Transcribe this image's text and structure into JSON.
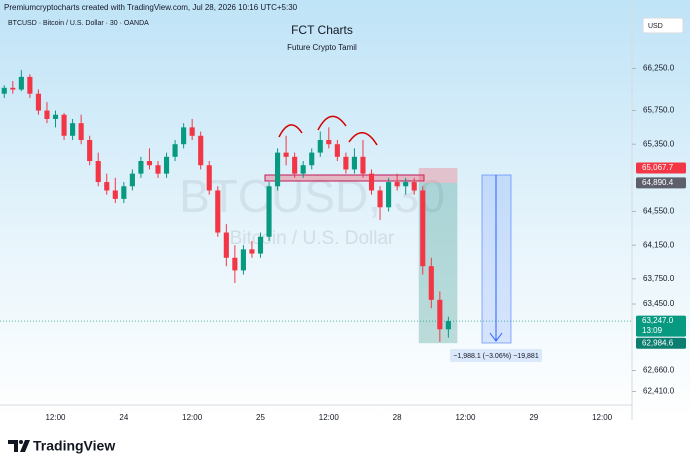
{
  "header": "Premiumcryptocharts created with TradingView.com, Jul 28, 2026 10:16 UTC+5:30",
  "footer": {
    "brand": "TradingView"
  },
  "chart_data": {
    "type": "candlestick",
    "title": "FCT Charts",
    "subtitle": "Future Crypto Tamil",
    "symbol": "BTCUSD · Bitcoin / U.S. Dollar · 30 · OANDA",
    "watermark": [
      "BTCUSD, 30",
      "Bitcoin / U.S. Dollar"
    ],
    "currency": "USD",
    "categories": [
      null,
      null,
      null,
      null,
      null,
      null,
      "12:00",
      null,
      null,
      null,
      null,
      null,
      null,
      null,
      "24",
      null,
      null,
      null,
      null,
      null,
      null,
      null,
      "12:00",
      null,
      null,
      null,
      null,
      null,
      null,
      null,
      "25",
      null,
      null,
      null,
      null,
      null,
      null,
      null,
      "12:00",
      null,
      null,
      null,
      null,
      null,
      null,
      null,
      "28",
      null,
      null,
      null,
      null,
      null,
      null,
      null,
      "12:00",
      null,
      null,
      null,
      null,
      null,
      null,
      null,
      "29",
      null,
      null,
      null,
      null,
      null,
      null,
      null,
      "12:00",
      null,
      null,
      null
    ],
    "open": [
      65950,
      66020,
      66000,
      66150,
      65950,
      65750,
      65650,
      65700,
      65450,
      65600,
      65400,
      65150,
      64900,
      64800,
      64700,
      64850,
      65000,
      65150,
      65100,
      65000,
      65200,
      65350,
      65550,
      65450,
      65100,
      64800,
      64300,
      64000,
      63850,
      64100,
      64050,
      64250,
      64850,
      65250,
      65200,
      65000,
      65100,
      65250,
      65400,
      65350,
      65200,
      65050,
      65200,
      65000,
      64800,
      64600,
      64900,
      64850,
      64900,
      64800,
      63900,
      63500,
      63150,
      null,
      null,
      null,
      null,
      null,
      null,
      null,
      null,
      null,
      null,
      null,
      null,
      null,
      null,
      null,
      null,
      null,
      null,
      null,
      null,
      null
    ],
    "high": [
      66050,
      66100,
      66230,
      66180,
      66000,
      65850,
      65750,
      65720,
      65650,
      65700,
      65450,
      65250,
      65000,
      64950,
      64900,
      65050,
      65200,
      65300,
      65150,
      65250,
      65400,
      65600,
      65650,
      65500,
      65150,
      64850,
      64400,
      64150,
      64150,
      64200,
      64300,
      64900,
      65300,
      65450,
      65250,
      65150,
      65300,
      65500,
      65550,
      65400,
      65250,
      65300,
      65400,
      65050,
      64850,
      64950,
      65000,
      64950,
      64950,
      64850,
      64000,
      63600,
      63300,
      null,
      null,
      null,
      null,
      null,
      null,
      null,
      null,
      null,
      null,
      null,
      null,
      null,
      null,
      null,
      null,
      null,
      null,
      null,
      null,
      null
    ],
    "low": [
      65900,
      65950,
      65980,
      65900,
      65700,
      65600,
      65550,
      65400,
      65400,
      65350,
      65100,
      64850,
      64750,
      64650,
      64650,
      64800,
      64950,
      65050,
      64950,
      64950,
      65150,
      65300,
      65400,
      65050,
      64750,
      64250,
      63900,
      63700,
      63800,
      64000,
      64000,
      64200,
      64800,
      65100,
      64950,
      64950,
      65050,
      65200,
      65300,
      65150,
      65000,
      65000,
      64950,
      64750,
      64450,
      64550,
      64800,
      64750,
      64750,
      63800,
      63400,
      63000,
      63050,
      null,
      null,
      null,
      null,
      null,
      null,
      null,
      null,
      null,
      null,
      null,
      null,
      null,
      null,
      null,
      null,
      null,
      null,
      null,
      null,
      null
    ],
    "close": [
      66020,
      66000,
      66150,
      65950,
      65750,
      65650,
      65700,
      65450,
      65600,
      65400,
      65150,
      64900,
      64800,
      64700,
      64850,
      65000,
      65150,
      65100,
      65000,
      65200,
      65350,
      65550,
      65450,
      65100,
      64800,
      64300,
      64000,
      63850,
      64100,
      64050,
      64250,
      64850,
      65250,
      65200,
      65000,
      65100,
      65250,
      65400,
      65350,
      65200,
      65050,
      65200,
      65000,
      64800,
      64600,
      64900,
      64850,
      64900,
      64800,
      63900,
      63500,
      63150,
      63247,
      null,
      null,
      null,
      null,
      null,
      null,
      null,
      null,
      null,
      null,
      null,
      null,
      null,
      null,
      null,
      null,
      null,
      null,
      null,
      null,
      null
    ],
    "up_color": "#089981",
    "down_color": "#f23645",
    "ylim": [
      62250,
      66850
    ],
    "yticks": [
      {
        "value": 66250,
        "label": "66,250.0"
      },
      {
        "value": 65750,
        "label": "65,750.0"
      },
      {
        "value": 65350,
        "label": "65,350.0"
      },
      {
        "value": 64550,
        "label": "64,550.0"
      },
      {
        "value": 64150,
        "label": "64,150.0"
      },
      {
        "value": 63750,
        "label": "63,750.0"
      },
      {
        "value": 63450,
        "label": "63,450.0"
      },
      {
        "value": 62660,
        "label": "62,660.0"
      },
      {
        "value": 62410,
        "label": "62,410.0"
      }
    ],
    "price_labels": [
      {
        "value": 65067.7,
        "label": "65,067.7",
        "color": "#f23645"
      },
      {
        "value": 64890.4,
        "label": "64,890.4",
        "color": "#5d606b"
      },
      {
        "value": 63247,
        "label": "63,247.0",
        "color": "#089981",
        "timer": "13:09"
      },
      {
        "value": 62984.6,
        "label": "62,984.6",
        "color": "#0b7e70"
      }
    ],
    "measure_label": "−1,988.1 (−3.06%) −19,881"
  }
}
